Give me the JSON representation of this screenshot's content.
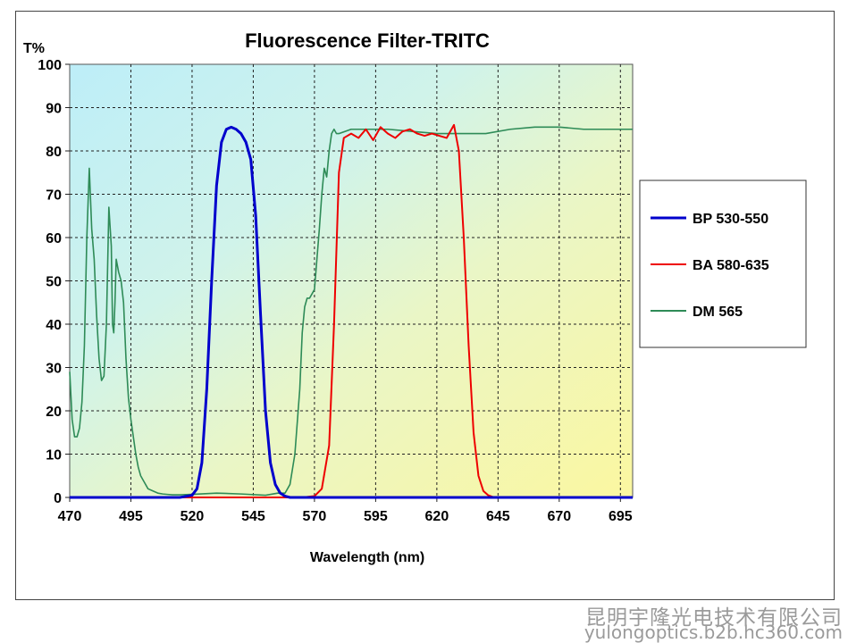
{
  "chart_data": {
    "type": "line",
    "title": "Fluorescence Filter-TRITC",
    "xlabel": "Wavelength (nm)",
    "ylabel": "T%",
    "xlim": [
      470,
      700
    ],
    "ylim": [
      0,
      100
    ],
    "xticks": [
      470,
      495,
      520,
      545,
      570,
      595,
      620,
      645,
      670,
      695
    ],
    "yticks": [
      0,
      10,
      20,
      30,
      40,
      50,
      60,
      70,
      80,
      90,
      100
    ],
    "grid": true,
    "legend_position": "right",
    "series": [
      {
        "name": "BP 530-550",
        "color": "#0000cc",
        "x": [
          470,
          515,
          520,
          522,
          524,
          526,
          528,
          530,
          532,
          534,
          536,
          538,
          540,
          542,
          544,
          546,
          548,
          550,
          552,
          554,
          556,
          558,
          560,
          700
        ],
        "y": [
          0,
          0,
          0.5,
          2,
          8,
          25,
          50,
          72,
          82,
          85,
          85.5,
          85,
          84,
          82,
          78,
          65,
          42,
          20,
          8,
          3,
          1,
          0.3,
          0,
          0
        ]
      },
      {
        "name": "BA 580-635",
        "color": "#ee0000",
        "x": [
          470,
          565,
          570,
          573,
          576,
          578,
          580,
          582,
          585,
          588,
          591,
          594,
          597,
          600,
          603,
          606,
          609,
          612,
          615,
          618,
          621,
          624,
          627,
          629,
          631,
          633,
          635,
          637,
          639,
          641,
          643,
          645,
          700
        ],
        "y": [
          0,
          0,
          0.3,
          2,
          12,
          40,
          75,
          83,
          84,
          83,
          85,
          82.5,
          85.5,
          84,
          83,
          84.5,
          85,
          84,
          83.5,
          84,
          83.5,
          83,
          86,
          80,
          60,
          35,
          15,
          5,
          1.5,
          0.5,
          0.1,
          0,
          0
        ]
      },
      {
        "name": "DM 565",
        "color": "#2e8b57",
        "x": [
          470,
          471,
          472,
          473,
          474,
          475,
          476,
          477,
          478,
          479,
          480,
          481,
          482,
          483,
          484,
          485,
          486,
          487,
          487.5,
          488,
          488.5,
          489,
          490,
          491,
          492,
          493,
          494,
          495,
          496,
          497,
          498,
          499,
          500,
          502,
          504,
          506,
          508,
          510,
          512,
          515,
          520,
          530,
          540,
          550,
          555,
          558,
          560,
          562,
          564,
          565,
          566,
          567,
          568,
          569,
          570,
          571,
          572,
          573,
          574,
          575,
          576,
          577,
          578,
          579,
          580,
          585,
          590,
          595,
          600,
          610,
          620,
          630,
          640,
          650,
          660,
          670,
          680,
          690,
          700
        ],
        "y": [
          29,
          18,
          14,
          14,
          16,
          22,
          35,
          60,
          76,
          62,
          55,
          42,
          32,
          27,
          28,
          40,
          67,
          58,
          40,
          38,
          45,
          55,
          52,
          50,
          45,
          32,
          23,
          18,
          14,
          10,
          7,
          5,
          4,
          2,
          1.5,
          1,
          0.8,
          0.7,
          0.6,
          0.6,
          0.7,
          1,
          0.8,
          0.5,
          1,
          1,
          3,
          10,
          25,
          38,
          44,
          46,
          46,
          47,
          48,
          55,
          62,
          70,
          76,
          74,
          80,
          84,
          85,
          84,
          84,
          85,
          85,
          85,
          85,
          84.5,
          84,
          84,
          84,
          85,
          85.5,
          85.5,
          85,
          85,
          85
        ]
      }
    ]
  },
  "watermark": {
    "company_name": "昆明宇隆光电技术有限公司",
    "site_url": "yulongoptics.b2b.hc360.com"
  }
}
